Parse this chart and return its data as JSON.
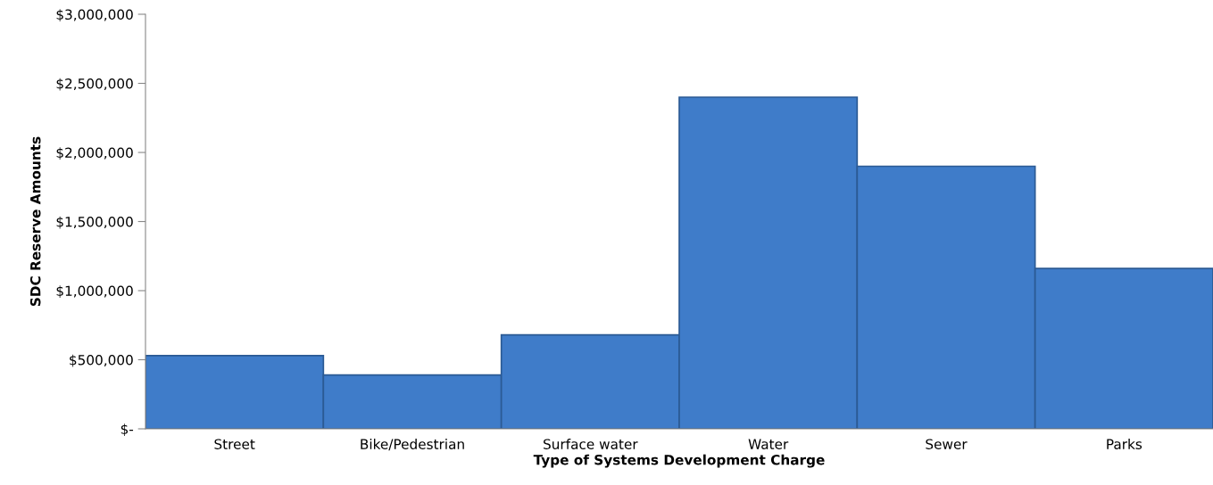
{
  "chart_data": {
    "type": "bar",
    "xlabel": "Type of Systems Development Charge",
    "ylabel": "SDC Reserve Amounts",
    "categories": [
      "Street",
      "Bike/Pedestrian",
      "Surface water",
      "Water",
      "Sewer",
      "Parks"
    ],
    "values": [
      530000,
      390000,
      680000,
      2400000,
      1900000,
      1160000
    ],
    "color": "#3f7cc9",
    "ylim": [
      0,
      3000000
    ],
    "yticks": [
      {
        "value": 0,
        "label": "$-"
      },
      {
        "value": 500000,
        "label": "$500,000"
      },
      {
        "value": 1000000,
        "label": "$1,000,000"
      },
      {
        "value": 1500000,
        "label": "$1,500,000"
      },
      {
        "value": 2000000,
        "label": "$2,000,000"
      },
      {
        "value": 2500000,
        "label": "$2,500,000"
      },
      {
        "value": 3000000,
        "label": "$3,000,000"
      }
    ],
    "grid": false,
    "legend": false
  }
}
